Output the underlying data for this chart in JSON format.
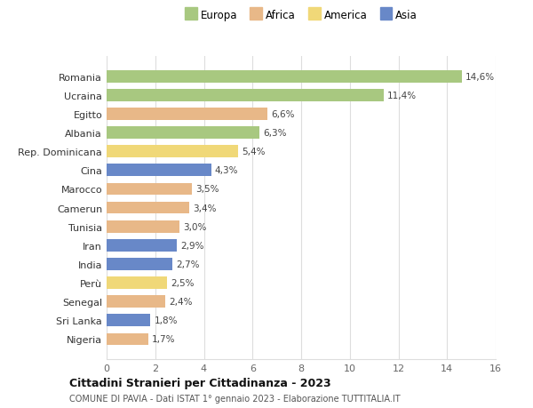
{
  "countries": [
    "Nigeria",
    "Sri Lanka",
    "Senegal",
    "Perù",
    "India",
    "Iran",
    "Tunisia",
    "Camerun",
    "Marocco",
    "Cina",
    "Rep. Dominicana",
    "Albania",
    "Egitto",
    "Ucraina",
    "Romania"
  ],
  "values": [
    1.7,
    1.8,
    2.4,
    2.5,
    2.7,
    2.9,
    3.0,
    3.4,
    3.5,
    4.3,
    5.4,
    6.3,
    6.6,
    11.4,
    14.6
  ],
  "labels": [
    "1,7%",
    "1,8%",
    "2,4%",
    "2,5%",
    "2,7%",
    "2,9%",
    "3,0%",
    "3,4%",
    "3,5%",
    "4,3%",
    "5,4%",
    "6,3%",
    "6,6%",
    "11,4%",
    "14,6%"
  ],
  "continents": [
    "Africa",
    "Asia",
    "Africa",
    "America",
    "Asia",
    "Asia",
    "Africa",
    "Africa",
    "Africa",
    "Asia",
    "America",
    "Europa",
    "Africa",
    "Europa",
    "Europa"
  ],
  "colors": {
    "Europa": "#a8c880",
    "Africa": "#e8b888",
    "America": "#f0d878",
    "Asia": "#6888c8"
  },
  "legend_labels": [
    "Europa",
    "Africa",
    "America",
    "Asia"
  ],
  "legend_colors": [
    "#a8c880",
    "#e8b888",
    "#f0d878",
    "#6888c8"
  ],
  "xlim": [
    0,
    16
  ],
  "xticks": [
    0,
    2,
    4,
    6,
    8,
    10,
    12,
    14,
    16
  ],
  "title": "Cittadini Stranieri per Cittadinanza - 2023",
  "subtitle": "COMUNE DI PAVIA - Dati ISTAT 1° gennaio 2023 - Elaborazione TUTTITALIA.IT",
  "background_color": "#ffffff",
  "grid_color": "#dddddd",
  "bar_height": 0.65
}
